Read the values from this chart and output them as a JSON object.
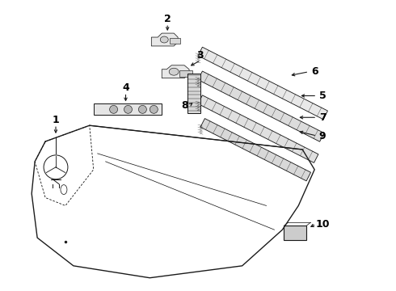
{
  "bg_color": "#ffffff",
  "line_color": "#1a1a1a",
  "label_color": "#000000",
  "label_fontsize": 9,
  "lw": 0.9
}
